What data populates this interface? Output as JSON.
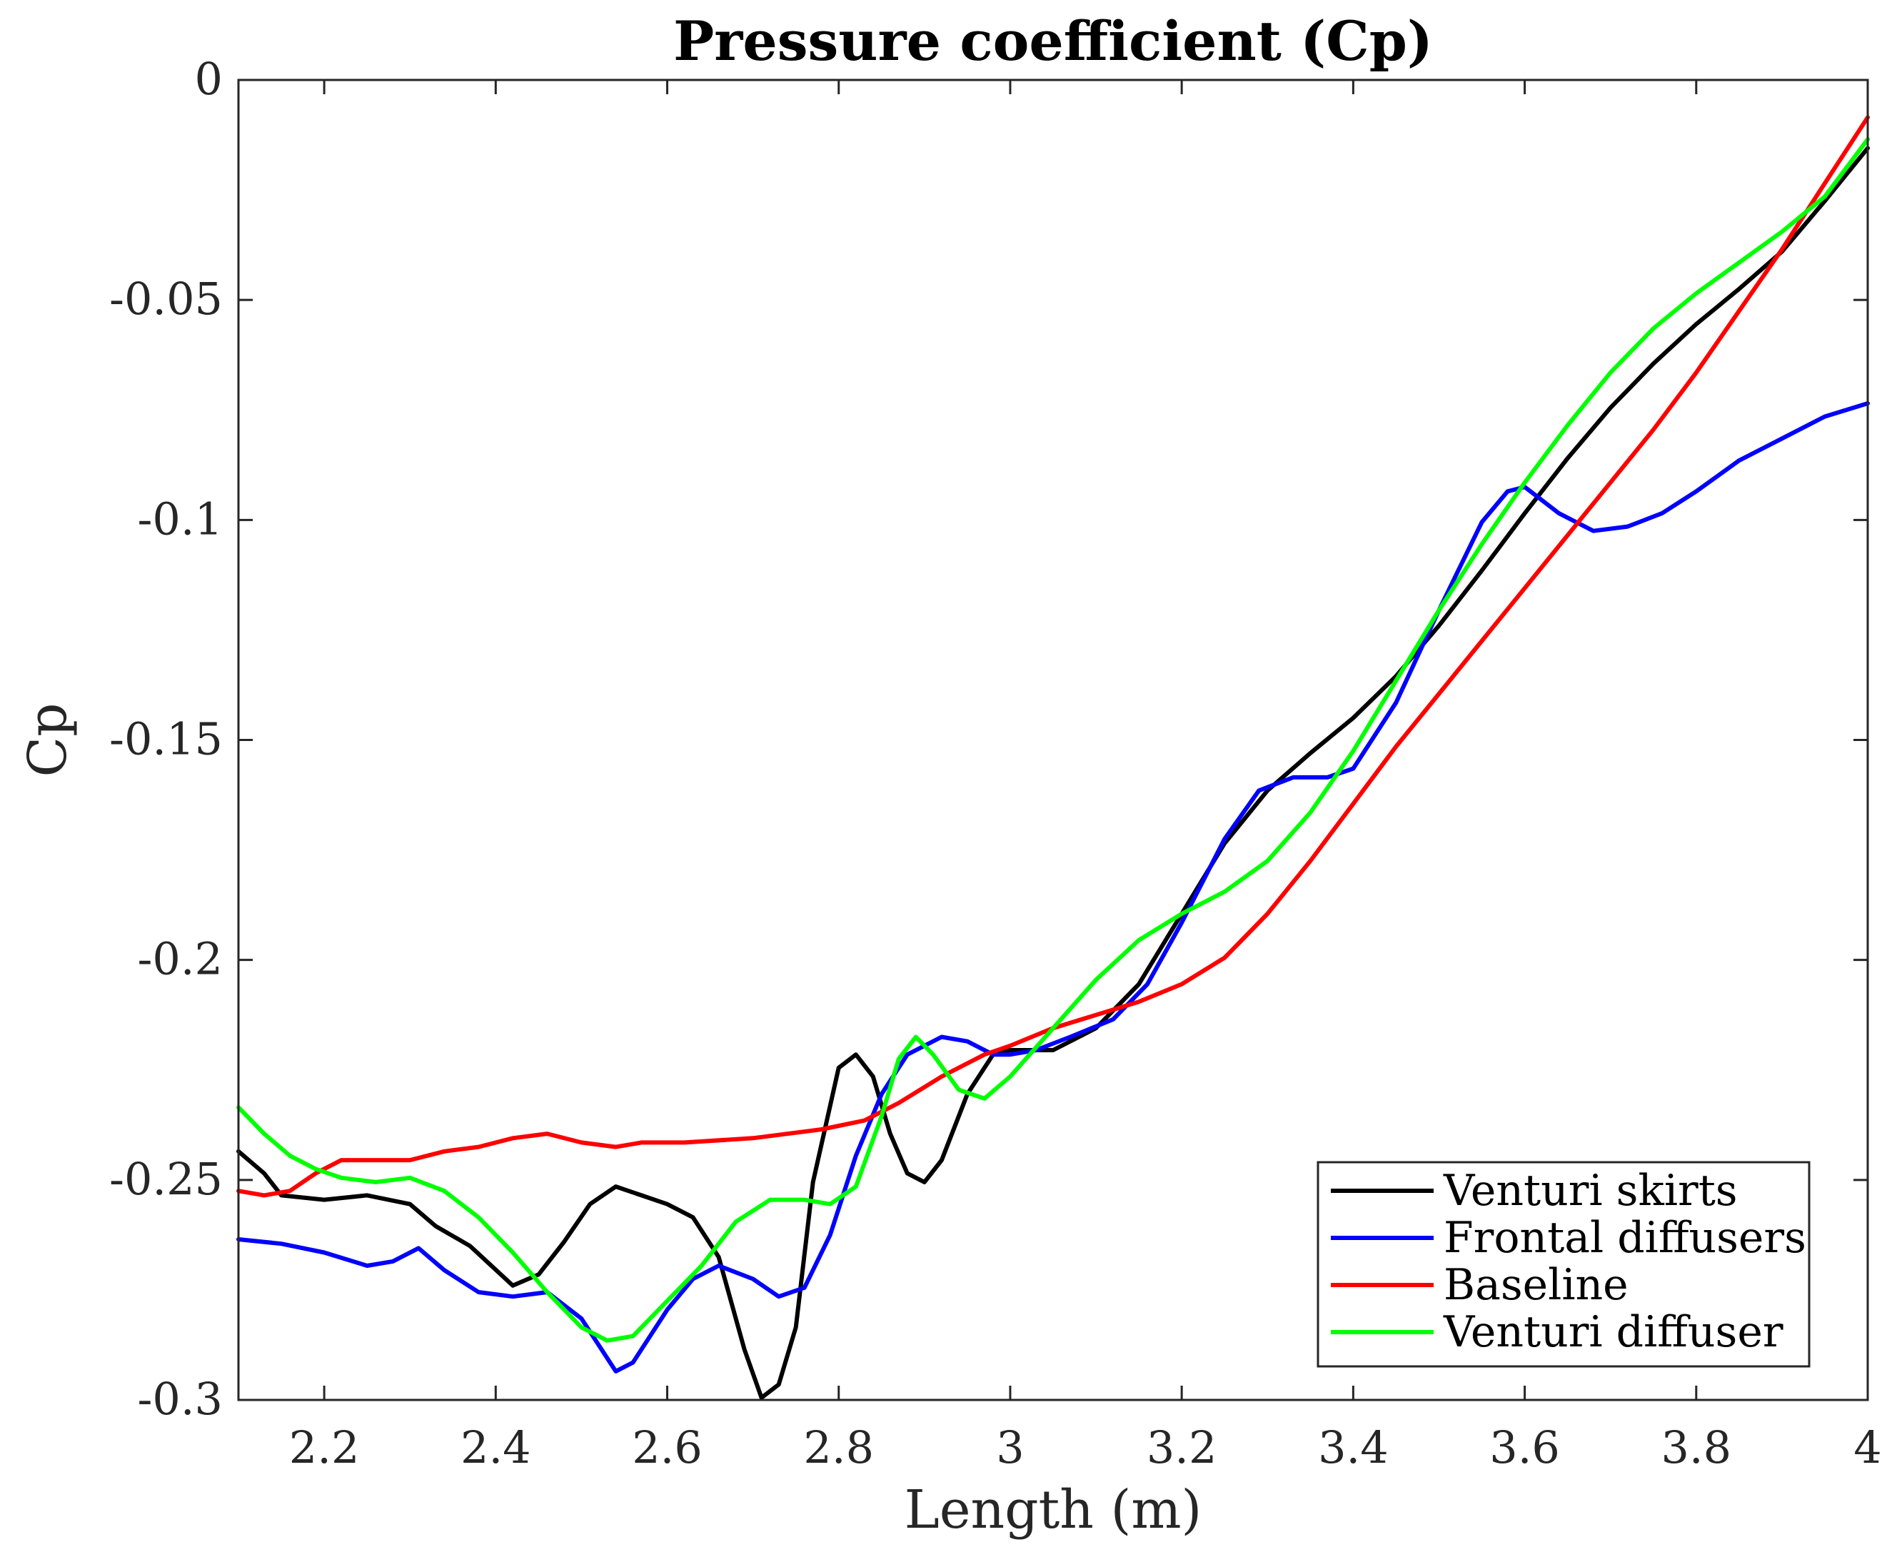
{
  "chart_data": {
    "type": "line",
    "title": "Pressure coefficient (Cp)",
    "xlabel": "Length (m)",
    "ylabel": "Cp",
    "xlim": [
      2.1,
      4.0
    ],
    "ylim": [
      -0.3,
      0.0
    ],
    "xticks": [
      2.2,
      2.4,
      2.6,
      2.8,
      3.0,
      3.2,
      3.4,
      3.6,
      3.8,
      4.0
    ],
    "xtick_labels": [
      "2.2",
      "2.4",
      "2.6",
      "2.8",
      "3",
      "3.2",
      "3.4",
      "3.6",
      "3.8",
      "4"
    ],
    "yticks": [
      0,
      -0.05,
      -0.1,
      -0.15,
      -0.2,
      -0.25,
      -0.3
    ],
    "ytick_labels": [
      "0",
      "-0.05",
      "-0.1",
      "-0.15",
      "-0.2",
      "-0.25",
      "-0.3"
    ],
    "grid": false,
    "legend_position": "bottom-right",
    "series": [
      {
        "name": "Venturi skirts",
        "color": "#000000",
        "points": [
          [
            2.1,
            -0.2435
          ],
          [
            2.13,
            -0.2485
          ],
          [
            2.15,
            -0.2535
          ],
          [
            2.2,
            -0.2545
          ],
          [
            2.25,
            -0.2535
          ],
          [
            2.3,
            -0.2555
          ],
          [
            2.33,
            -0.2605
          ],
          [
            2.37,
            -0.265
          ],
          [
            2.42,
            -0.274
          ],
          [
            2.45,
            -0.2715
          ],
          [
            2.48,
            -0.264
          ],
          [
            2.51,
            -0.2555
          ],
          [
            2.54,
            -0.2515
          ],
          [
            2.57,
            -0.2535
          ],
          [
            2.6,
            -0.2555
          ],
          [
            2.63,
            -0.2585
          ],
          [
            2.66,
            -0.2675
          ],
          [
            2.69,
            -0.2885
          ],
          [
            2.71,
            -0.2995
          ],
          [
            2.73,
            -0.2965
          ],
          [
            2.75,
            -0.2835
          ],
          [
            2.77,
            -0.2505
          ],
          [
            2.8,
            -0.2245
          ],
          [
            2.82,
            -0.2215
          ],
          [
            2.84,
            -0.2265
          ],
          [
            2.86,
            -0.2395
          ],
          [
            2.88,
            -0.2485
          ],
          [
            2.9,
            -0.2505
          ],
          [
            2.92,
            -0.2455
          ],
          [
            2.95,
            -0.2305
          ],
          [
            2.98,
            -0.2215
          ],
          [
            3.0,
            -0.2205
          ],
          [
            3.05,
            -0.2205
          ],
          [
            3.1,
            -0.2155
          ],
          [
            3.15,
            -0.2055
          ],
          [
            3.2,
            -0.1895
          ],
          [
            3.25,
            -0.1735
          ],
          [
            3.3,
            -0.1615
          ],
          [
            3.35,
            -0.153
          ],
          [
            3.4,
            -0.145
          ],
          [
            3.45,
            -0.1355
          ],
          [
            3.5,
            -0.124
          ],
          [
            3.55,
            -0.1115
          ],
          [
            3.6,
            -0.0985
          ],
          [
            3.65,
            -0.086
          ],
          [
            3.7,
            -0.0745
          ],
          [
            3.75,
            -0.0645
          ],
          [
            3.8,
            -0.0555
          ],
          [
            3.85,
            -0.0475
          ],
          [
            3.9,
            -0.039
          ],
          [
            3.95,
            -0.0275
          ],
          [
            4.0,
            -0.0155
          ]
        ]
      },
      {
        "name": "Frontal diffusers",
        "color": "#0000ff",
        "points": [
          [
            2.1,
            -0.2635
          ],
          [
            2.15,
            -0.2645
          ],
          [
            2.2,
            -0.2665
          ],
          [
            2.25,
            -0.2695
          ],
          [
            2.28,
            -0.2685
          ],
          [
            2.31,
            -0.2655
          ],
          [
            2.34,
            -0.2705
          ],
          [
            2.38,
            -0.2755
          ],
          [
            2.42,
            -0.2765
          ],
          [
            2.46,
            -0.2755
          ],
          [
            2.5,
            -0.2815
          ],
          [
            2.54,
            -0.2935
          ],
          [
            2.56,
            -0.2915
          ],
          [
            2.6,
            -0.2795
          ],
          [
            2.63,
            -0.2725
          ],
          [
            2.66,
            -0.2695
          ],
          [
            2.7,
            -0.2725
          ],
          [
            2.73,
            -0.2765
          ],
          [
            2.76,
            -0.2745
          ],
          [
            2.79,
            -0.2625
          ],
          [
            2.82,
            -0.2445
          ],
          [
            2.85,
            -0.2305
          ],
          [
            2.88,
            -0.2215
          ],
          [
            2.92,
            -0.2175
          ],
          [
            2.95,
            -0.2185
          ],
          [
            2.98,
            -0.2215
          ],
          [
            3.0,
            -0.2215
          ],
          [
            3.03,
            -0.2205
          ],
          [
            3.07,
            -0.2175
          ],
          [
            3.12,
            -0.2135
          ],
          [
            3.16,
            -0.2055
          ],
          [
            3.2,
            -0.1915
          ],
          [
            3.25,
            -0.1725
          ],
          [
            3.29,
            -0.1615
          ],
          [
            3.33,
            -0.1585
          ],
          [
            3.37,
            -0.1585
          ],
          [
            3.4,
            -0.1565
          ],
          [
            3.45,
            -0.1415
          ],
          [
            3.5,
            -0.1205
          ],
          [
            3.55,
            -0.1005
          ],
          [
            3.58,
            -0.0935
          ],
          [
            3.6,
            -0.0925
          ],
          [
            3.64,
            -0.0985
          ],
          [
            3.68,
            -0.1025
          ],
          [
            3.72,
            -0.1015
          ],
          [
            3.76,
            -0.0985
          ],
          [
            3.8,
            -0.0935
          ],
          [
            3.85,
            -0.0865
          ],
          [
            3.9,
            -0.0815
          ],
          [
            3.95,
            -0.0765
          ],
          [
            4.0,
            -0.0735
          ]
        ]
      },
      {
        "name": "Baseline",
        "color": "#ff0000",
        "points": [
          [
            2.1,
            -0.2525
          ],
          [
            2.13,
            -0.2535
          ],
          [
            2.16,
            -0.2525
          ],
          [
            2.19,
            -0.2485
          ],
          [
            2.22,
            -0.2455
          ],
          [
            2.26,
            -0.2455
          ],
          [
            2.3,
            -0.2455
          ],
          [
            2.34,
            -0.2435
          ],
          [
            2.38,
            -0.2425
          ],
          [
            2.42,
            -0.2405
          ],
          [
            2.46,
            -0.2395
          ],
          [
            2.5,
            -0.2415
          ],
          [
            2.54,
            -0.2425
          ],
          [
            2.57,
            -0.2415
          ],
          [
            2.62,
            -0.2415
          ],
          [
            2.7,
            -0.2405
          ],
          [
            2.78,
            -0.2385
          ],
          [
            2.83,
            -0.2365
          ],
          [
            2.87,
            -0.2325
          ],
          [
            2.92,
            -0.2265
          ],
          [
            2.97,
            -0.2215
          ],
          [
            3.0,
            -0.2195
          ],
          [
            3.05,
            -0.2155
          ],
          [
            3.1,
            -0.2125
          ],
          [
            3.15,
            -0.2095
          ],
          [
            3.2,
            -0.2055
          ],
          [
            3.25,
            -0.1995
          ],
          [
            3.3,
            -0.1895
          ],
          [
            3.35,
            -0.1775
          ],
          [
            3.4,
            -0.1645
          ],
          [
            3.45,
            -0.1515
          ],
          [
            3.5,
            -0.1395
          ],
          [
            3.55,
            -0.1275
          ],
          [
            3.6,
            -0.1155
          ],
          [
            3.65,
            -0.1035
          ],
          [
            3.7,
            -0.0915
          ],
          [
            3.75,
            -0.0795
          ],
          [
            3.8,
            -0.0665
          ],
          [
            3.85,
            -0.0525
          ],
          [
            3.9,
            -0.0385
          ],
          [
            3.95,
            -0.0235
          ],
          [
            4.0,
            -0.0085
          ]
        ]
      },
      {
        "name": "Venturi diffuser",
        "color": "#00ff00",
        "points": [
          [
            2.1,
            -0.2335
          ],
          [
            2.13,
            -0.2395
          ],
          [
            2.16,
            -0.2445
          ],
          [
            2.19,
            -0.2475
          ],
          [
            2.22,
            -0.2495
          ],
          [
            2.26,
            -0.2505
          ],
          [
            2.3,
            -0.2495
          ],
          [
            2.34,
            -0.2525
          ],
          [
            2.38,
            -0.2585
          ],
          [
            2.42,
            -0.2665
          ],
          [
            2.46,
            -0.2755
          ],
          [
            2.5,
            -0.2835
          ],
          [
            2.53,
            -0.2865
          ],
          [
            2.56,
            -0.2855
          ],
          [
            2.6,
            -0.2775
          ],
          [
            2.64,
            -0.2695
          ],
          [
            2.68,
            -0.2595
          ],
          [
            2.72,
            -0.2545
          ],
          [
            2.76,
            -0.2545
          ],
          [
            2.79,
            -0.2555
          ],
          [
            2.82,
            -0.2515
          ],
          [
            2.85,
            -0.2355
          ],
          [
            2.87,
            -0.2225
          ],
          [
            2.89,
            -0.2175
          ],
          [
            2.91,
            -0.2215
          ],
          [
            2.94,
            -0.2295
          ],
          [
            2.97,
            -0.2315
          ],
          [
            3.0,
            -0.2265
          ],
          [
            3.05,
            -0.2155
          ],
          [
            3.1,
            -0.2045
          ],
          [
            3.15,
            -0.1955
          ],
          [
            3.2,
            -0.1895
          ],
          [
            3.25,
            -0.1845
          ],
          [
            3.3,
            -0.1775
          ],
          [
            3.35,
            -0.1665
          ],
          [
            3.4,
            -0.1525
          ],
          [
            3.45,
            -0.1365
          ],
          [
            3.5,
            -0.1205
          ],
          [
            3.55,
            -0.1055
          ],
          [
            3.6,
            -0.0915
          ],
          [
            3.65,
            -0.0785
          ],
          [
            3.7,
            -0.0665
          ],
          [
            3.75,
            -0.0565
          ],
          [
            3.8,
            -0.0485
          ],
          [
            3.85,
            -0.0415
          ],
          [
            3.9,
            -0.0345
          ],
          [
            3.95,
            -0.0265
          ],
          [
            4.0,
            -0.0135
          ]
        ]
      }
    ]
  }
}
